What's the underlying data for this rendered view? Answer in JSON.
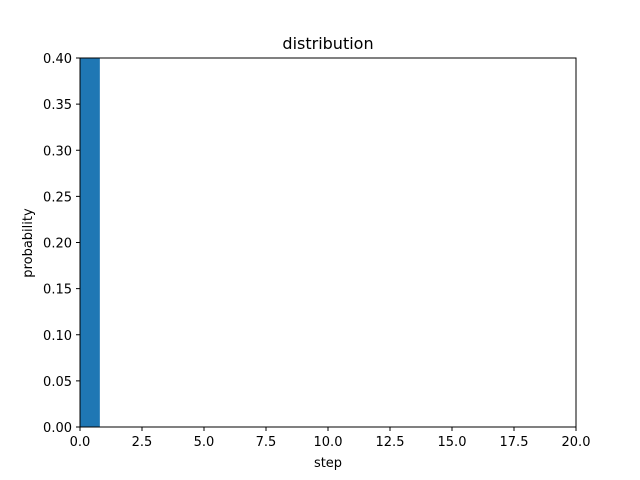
{
  "chart_data": {
    "type": "bar",
    "title": "distribution",
    "xlabel": "step",
    "ylabel": "probability",
    "xlim": [
      0,
      20
    ],
    "ylim": [
      0,
      0.4
    ],
    "xticks": [
      "0.0",
      "2.5",
      "5.0",
      "7.5",
      "10.0",
      "12.5",
      "15.0",
      "17.5",
      "20.0"
    ],
    "yticks": [
      "0.00",
      "0.05",
      "0.10",
      "0.15",
      "0.20",
      "0.25",
      "0.30",
      "0.35",
      "0.40"
    ],
    "bar_width": 0.8,
    "x": [
      0.4
    ],
    "values": [
      0.4
    ],
    "bar_color": "#1f77b4",
    "grid": false,
    "legend": "none"
  }
}
